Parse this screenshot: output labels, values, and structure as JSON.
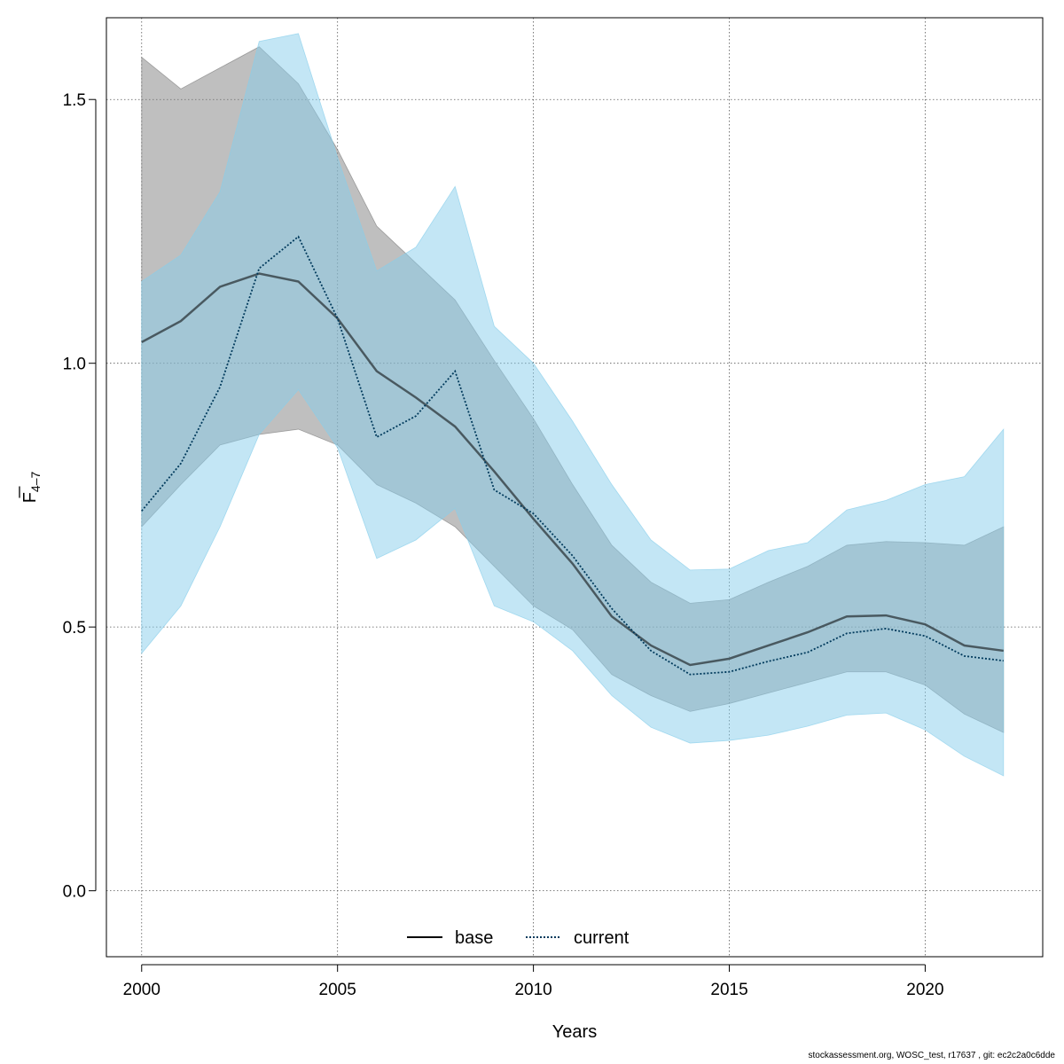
{
  "chart_data": {
    "type": "area",
    "xlabel": "Years",
    "ylabel_main": "F",
    "ylabel_sub": "4–7",
    "xlim": [
      1999.1,
      2023.0
    ],
    "ylim": [
      -0.125,
      1.655
    ],
    "x_ticks": [
      2000,
      2005,
      2010,
      2015,
      2020
    ],
    "y_ticks": [
      0.0,
      0.5,
      1.0,
      1.5
    ],
    "y_tick_labels": [
      "0.0",
      "0.5",
      "1.0",
      "1.5"
    ],
    "grid": true,
    "legend_position": "bottom-center",
    "years": [
      2000,
      2001,
      2002,
      2003,
      2004,
      2005,
      2006,
      2007,
      2008,
      2009,
      2010,
      2011,
      2012,
      2013,
      2014,
      2015,
      2016,
      2017,
      2018,
      2019,
      2020,
      2021,
      2022
    ],
    "series": [
      {
        "name": "base",
        "line_style": "solid",
        "line_color": "#000000",
        "band_color": "#808080",
        "values": [
          1.04,
          1.08,
          1.145,
          1.17,
          1.155,
          1.085,
          0.985,
          0.935,
          0.88,
          0.795,
          0.705,
          0.62,
          0.52,
          0.465,
          0.428,
          0.44,
          0.465,
          0.49,
          0.52,
          0.522,
          0.505,
          0.465,
          0.455
        ],
        "lower": [
          0.69,
          0.77,
          0.845,
          0.865,
          0.875,
          0.845,
          0.77,
          0.735,
          0.69,
          0.615,
          0.54,
          0.495,
          0.41,
          0.37,
          0.34,
          0.355,
          0.375,
          0.395,
          0.415,
          0.415,
          0.39,
          0.335,
          0.3
        ],
        "upper": [
          1.58,
          1.52,
          1.56,
          1.6,
          1.53,
          1.405,
          1.26,
          1.19,
          1.12,
          1.005,
          0.895,
          0.77,
          0.655,
          0.585,
          0.545,
          0.552,
          0.585,
          0.615,
          0.655,
          0.662,
          0.66,
          0.655,
          0.69
        ]
      },
      {
        "name": "current",
        "line_style": "dotted",
        "line_color": "#003a5c",
        "band_color": "#87ceeb",
        "values": [
          0.72,
          0.81,
          0.955,
          1.18,
          1.24,
          1.085,
          0.86,
          0.9,
          0.985,
          0.76,
          0.715,
          0.635,
          0.535,
          0.455,
          0.41,
          0.415,
          0.435,
          0.452,
          0.488,
          0.497,
          0.483,
          0.445,
          0.436
        ],
        "lower": [
          0.45,
          0.54,
          0.69,
          0.865,
          0.95,
          0.84,
          0.63,
          0.665,
          0.725,
          0.54,
          0.51,
          0.455,
          0.37,
          0.31,
          0.28,
          0.285,
          0.295,
          0.312,
          0.333,
          0.337,
          0.305,
          0.255,
          0.218
        ],
        "upper": [
          1.155,
          1.205,
          1.325,
          1.61,
          1.625,
          1.39,
          1.175,
          1.22,
          1.335,
          1.07,
          1.0,
          0.89,
          0.77,
          0.665,
          0.608,
          0.61,
          0.645,
          0.66,
          0.722,
          0.74,
          0.77,
          0.785,
          0.875
        ]
      }
    ]
  },
  "footer": "stockassessment.org, WOSC_test, r17637 , git: ec2c2a0c6dde"
}
